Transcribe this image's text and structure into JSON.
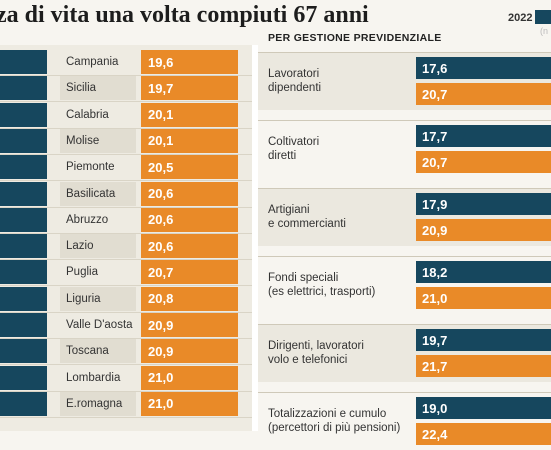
{
  "page": {
    "title": "za di vita una volta compiuti 67 anni",
    "legend_year": "2022",
    "legend_faded": "(n",
    "colors": {
      "navy": "#16475e",
      "orange": "#e98a28",
      "panel": "#eeebe2"
    }
  },
  "chart_data": [
    {
      "type": "bar",
      "orientation": "horizontal",
      "series": [
        {
          "values": [
            19.6,
            19.7,
            20.1,
            20.1,
            20.5,
            20.6,
            20.6,
            20.6,
            20.7,
            20.8,
            20.9,
            20.9,
            21.0,
            21.0
          ]
        }
      ],
      "categories": [
        "Campania",
        "Sicilia",
        "Calabria",
        "Molise",
        "Piemonte",
        "Basilicata",
        "Abruzzo",
        "Lazio",
        "Puglia",
        "Liguria",
        "Valle D'aosta",
        "Toscana",
        "Lombardia",
        "E.romagna"
      ],
      "value_labels": [
        "19,6",
        "19,7",
        "20,1",
        "20,1",
        "20,5",
        "20,6",
        "20,6",
        "20,6",
        "20,7",
        "20,8",
        "20,9",
        "20,9",
        "21,0",
        "21,0"
      ]
    },
    {
      "type": "bar",
      "orientation": "horizontal",
      "title": "PER GESTIONE PREVIDENZIALE",
      "categories": [
        "Lavoratori\ndipendenti",
        "Coltivatori\ndiretti",
        "Artigiani\ne commercianti",
        "Fondi speciali\n(es elettrici, trasporti)",
        "Dirigenti, lavoratori\nvolo e telefonici",
        "Totalizzazioni e cumulo\n(percettori di più pensioni)"
      ],
      "series": [
        {
          "name": "2022",
          "color": "#16475e",
          "values": [
            17.6,
            17.7,
            17.9,
            18.2,
            19.7,
            19.0
          ],
          "labels": [
            "17,6",
            "17,7",
            "17,9",
            "18,2",
            "19,7",
            "19,0"
          ]
        },
        {
          "color": "#e98a28",
          "values": [
            20.7,
            20.7,
            20.9,
            21.0,
            21.7,
            22.4
          ],
          "labels": [
            "20,7",
            "20,7",
            "20,9",
            "21,0",
            "21,7",
            "22,4"
          ]
        }
      ]
    }
  ]
}
